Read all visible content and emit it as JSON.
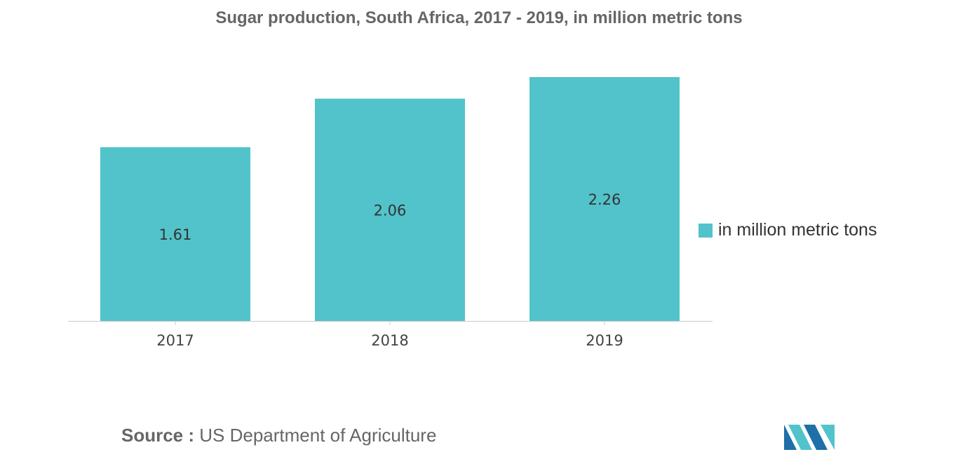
{
  "colors": {
    "bar": "#52c3ca",
    "axis": "#cccccc",
    "label": "#333333",
    "logo_dark": "#1f6fa8",
    "logo_light": "#52c3ca"
  },
  "chart_data": {
    "type": "bar",
    "title": "Sugar production, South Africa, 2017 - 2019, in million metric tons",
    "categories": [
      "2017",
      "2018",
      "2019"
    ],
    "series": [
      {
        "name": "in million metric tons",
        "values": [
          1.61,
          2.06,
          2.26
        ]
      }
    ],
    "value_labels": [
      "1.61",
      "2.06",
      "2.26"
    ],
    "ylim": [
      0,
      2.26
    ],
    "grid": false,
    "legend_position": "right"
  },
  "source": {
    "label": "Source :",
    "text": "US Department of Agriculture"
  },
  "logo": {
    "icon": "mordor-logo-icon"
  }
}
